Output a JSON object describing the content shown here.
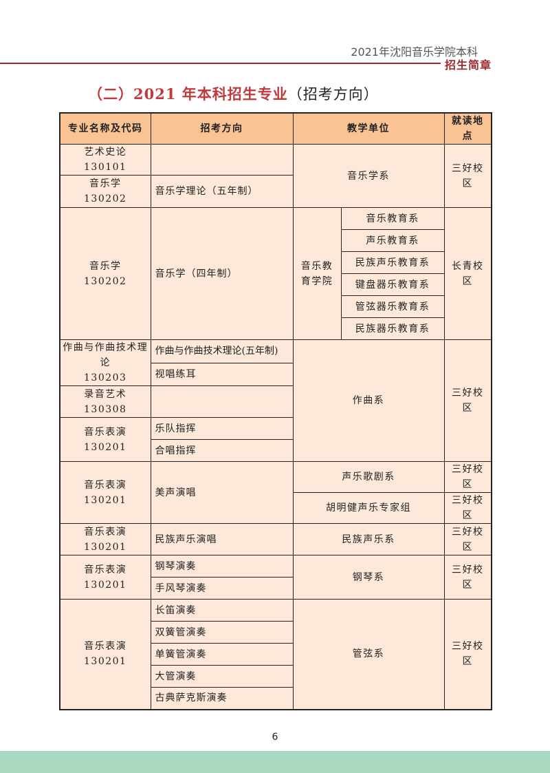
{
  "header": {
    "doc_title": "2021年沈阳音乐学院本科",
    "brand": "招生简章",
    "accent_color": "#9b2a2e"
  },
  "title": {
    "main": "（二）2021 年本科招生专业",
    "sub": "（招考方向）"
  },
  "table": {
    "headers": [
      "专业名称及代码",
      "招考方向",
      "教学单位",
      "就读地点"
    ],
    "header_color": "#f9c394",
    "cell_color": "#fde8da",
    "g0": {
      "major": "艺术史论",
      "code": "130101",
      "direction": ""
    },
    "g1": {
      "major": "音乐学",
      "code": "130202",
      "direction": "音乐学理论（五年制）",
      "unit": "音乐学系",
      "campus": "三好校区"
    },
    "g2": {
      "major": "音乐学",
      "code": "130202",
      "direction": "音乐学（四年制）",
      "unit": "音乐教育学院",
      "departments": [
        "音乐教育系",
        "声乐教育系",
        "民族声乐教育系",
        "键盘器乐教育系",
        "管弦器乐教育系",
        "民族器乐教育系"
      ],
      "campus": "长青校区"
    },
    "g3": {
      "major": "作曲与作曲技术理论",
      "code": "130203",
      "directions": [
        "作曲与作曲技术理论(五年制)",
        "视唱练耳"
      ]
    },
    "g4": {
      "major": "录音艺术",
      "code": "130308",
      "direction": ""
    },
    "g5": {
      "major": "音乐表演",
      "code": "130201",
      "directions": [
        "乐队指挥",
        "合唱指挥"
      ],
      "unit": "作曲系",
      "campus": "三好校区"
    },
    "g6": {
      "major": "音乐表演",
      "code": "130201",
      "direction": "美声演唱",
      "units": [
        "声乐歌剧系",
        "胡明健声乐专家组"
      ],
      "campuses": [
        "三好校区",
        "三好校区"
      ]
    },
    "g7": {
      "major": "音乐表演",
      "code": "130201",
      "direction": "民族声乐演唱",
      "unit": "民族声乐系",
      "campus": "三好校区"
    },
    "g8": {
      "major": "音乐表演",
      "code": "130201",
      "directions": [
        "钢琴演奏",
        "手风琴演奏"
      ],
      "unit": "钢琴系",
      "campus": "三好校区"
    },
    "g9": {
      "major": "音乐表演",
      "code": "130201",
      "directions": [
        "长笛演奏",
        "双簧管演奏",
        "单簧管演奏",
        "大管演奏",
        "古典萨克斯演奏"
      ],
      "unit": "管弦系",
      "campus": "三好校区"
    }
  },
  "footer": {
    "page_number": "6",
    "band_color": "#a8d8c0"
  }
}
